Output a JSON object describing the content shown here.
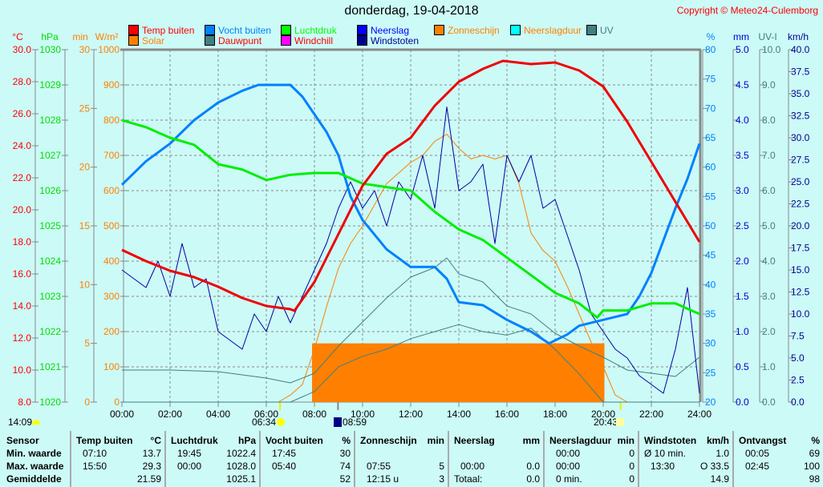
{
  "title": "donderdag, 19-04-2018",
  "copyright": "Copyright © Meteo24-Culemborg",
  "legend": [
    {
      "label": "Temp buiten",
      "color": "#ff0000"
    },
    {
      "label": "Solar",
      "color": "#ff8000"
    },
    {
      "label": "Vocht buiten",
      "color": "#0080ff"
    },
    {
      "label": "Dauwpunt",
      "color": "#408080",
      "text_color": "#ff0000"
    },
    {
      "label": "Luchtdruk",
      "color": "#00ff00"
    },
    {
      "label": "Windchill",
      "color": "#ff00ff",
      "text_color": "#ff0000"
    },
    {
      "label": "Neerslag",
      "color": "#0000ff"
    },
    {
      "label": "Windstoten",
      "color": "#000090"
    },
    {
      "label": "Zonneschijn",
      "color": "#ff8000"
    },
    {
      "label": "Neerslagduur",
      "color": "#00ffff",
      "text_color": "#ff8000"
    },
    {
      "label": "UV",
      "color": "#408080"
    }
  ],
  "annotations": {
    "daylength": "14:09",
    "sunrise": "06:34",
    "moonrise": "08:59",
    "sunset": "20:43"
  },
  "chart_data": {
    "type": "line",
    "title": "donderdag, 19-04-2018",
    "x_ticks": [
      "00:00",
      "02:00",
      "04:00",
      "06:00",
      "08:00",
      "10:00",
      "12:00",
      "14:00",
      "16:00",
      "18:00",
      "20:00",
      "22:00",
      "24:00"
    ],
    "xlim": [
      0,
      24
    ],
    "axes": [
      {
        "unit": "°C",
        "color": "#ff0000",
        "min": 8,
        "max": 30,
        "step": 2,
        "dec": 1,
        "side": "left"
      },
      {
        "unit": "hPa",
        "color": "#00dd00",
        "min": 1020,
        "max": 1030,
        "step": 1,
        "dec": 0,
        "side": "left"
      },
      {
        "unit": "min",
        "color": "#ff8000",
        "min": 0,
        "max": 30,
        "step": 5,
        "dec": 0,
        "side": "left"
      },
      {
        "unit": "W/m²",
        "color": "#ff8000",
        "min": 0,
        "max": 1000,
        "step": 100,
        "dec": 0,
        "side": "left"
      },
      {
        "unit": "%",
        "color": "#0080ff",
        "min": 20,
        "max": 80,
        "step": 5,
        "dec": 0,
        "side": "right"
      },
      {
        "unit": "mm",
        "color": "#0000cc",
        "min": 0,
        "max": 5,
        "step": 0.5,
        "dec": 1,
        "side": "right"
      },
      {
        "unit": "UV-I",
        "color": "#408080",
        "min": 0,
        "max": 10,
        "step": 1,
        "dec": 1,
        "side": "right"
      },
      {
        "unit": "km/h",
        "color": "#000090",
        "min": 0,
        "max": 40,
        "step": 2.5,
        "dec": 1,
        "side": "right"
      }
    ],
    "series": [
      {
        "name": "Zonneschijn",
        "axis": 2,
        "type": "bar",
        "color": "#ff8000",
        "x_range": [
          7.9,
          20.05
        ],
        "value": 5
      },
      {
        "name": "Solar",
        "axis": 3,
        "color": "#ff8000",
        "width": 1,
        "x": [
          0,
          6.5,
          7,
          7.5,
          8,
          8.5,
          9,
          9.5,
          10,
          10.5,
          11,
          11.5,
          12,
          12.5,
          13,
          13.5,
          14,
          14.5,
          15,
          15.5,
          16,
          16.5,
          17,
          17.5,
          18,
          18.5,
          19,
          19.5,
          20,
          20.5,
          21,
          24
        ],
        "y": [
          0,
          0,
          20,
          50,
          150,
          270,
          380,
          450,
          500,
          560,
          620,
          650,
          680,
          700,
          740,
          760,
          720,
          690,
          700,
          690,
          700,
          620,
          480,
          430,
          400,
          330,
          250,
          170,
          100,
          20,
          0,
          0
        ]
      },
      {
        "name": "Dauwpunt",
        "axis": 0,
        "color": "#408080",
        "width": 1,
        "x": [
          0,
          2,
          4,
          6,
          7,
          8,
          9,
          10,
          11,
          12,
          13,
          13.5,
          14,
          15,
          16,
          17,
          18,
          19,
          20,
          21,
          22,
          23,
          24
        ],
        "y": [
          10,
          10,
          9.9,
          9.5,
          9.2,
          9.8,
          11.5,
          13,
          14.5,
          15.8,
          16.4,
          17,
          16,
          15.5,
          14,
          13.5,
          12.3,
          11.5,
          10.8,
          10,
          9.8,
          9.6,
          10.8
        ]
      },
      {
        "name": "UV",
        "axis": 6,
        "color": "#408080",
        "width": 1,
        "x": [
          0,
          7,
          8,
          9,
          10,
          11,
          12,
          13,
          14,
          15,
          16,
          17,
          18,
          19,
          20,
          24
        ],
        "y": [
          0,
          0,
          0.3,
          1.0,
          1.3,
          1.5,
          1.8,
          2.0,
          2.2,
          2.0,
          1.9,
          2.1,
          1.5,
          0.8,
          0,
          0
        ]
      },
      {
        "name": "Windstoten",
        "axis": 7,
        "color": "#0000a0",
        "width": 1,
        "x": [
          0,
          0.5,
          1,
          1.5,
          2,
          2.5,
          3,
          3.5,
          4,
          4.5,
          5,
          5.5,
          6,
          6.5,
          7,
          7.5,
          8,
          8.5,
          9,
          9.5,
          10,
          10.5,
          11,
          11.5,
          12,
          12.5,
          13,
          13.5,
          14,
          14.5,
          15,
          15.5,
          16,
          16.5,
          17,
          17.5,
          18,
          18.5,
          19,
          19.5,
          20,
          20.5,
          21,
          21.5,
          22,
          22.5,
          23,
          23.5,
          24
        ],
        "y": [
          15,
          14,
          13,
          16,
          12,
          18,
          13,
          14,
          8,
          7,
          6,
          10,
          8,
          12,
          9,
          12,
          15,
          18,
          22,
          25,
          22,
          24,
          20,
          25,
          23,
          28,
          22,
          33.5,
          24,
          25,
          27,
          18,
          28,
          25,
          28,
          22,
          23,
          19,
          15,
          10,
          8,
          6,
          5,
          3,
          2,
          1,
          6,
          13,
          1
        ]
      },
      {
        "name": "Vocht buiten",
        "axis": 4,
        "color": "#0080ff",
        "width": 3,
        "x": [
          0,
          1,
          2,
          3,
          4,
          5,
          5.67,
          7,
          7.5,
          8.5,
          9,
          9.5,
          10,
          11,
          12,
          13,
          13.5,
          14,
          15,
          16,
          17,
          17.75,
          18.5,
          19,
          20,
          21,
          21.5,
          22,
          23,
          23.5,
          24
        ],
        "y": [
          57,
          61,
          64,
          68,
          71,
          73,
          74,
          74,
          72,
          66,
          62,
          55,
          51,
          46,
          43,
          43,
          41,
          37,
          36.5,
          34,
          32,
          30,
          31.5,
          33,
          34,
          35,
          38,
          42,
          53,
          58,
          64
        ]
      },
      {
        "name": "Luchtdruk",
        "axis": 1,
        "color": "#00ee00",
        "width": 3,
        "x": [
          0,
          1,
          2,
          3,
          4,
          5,
          6,
          7,
          8,
          9,
          10,
          11,
          12,
          13,
          14,
          15,
          16,
          17,
          18,
          19,
          19.75,
          20,
          21,
          22,
          23,
          24
        ],
        "y": [
          1028,
          1027.8,
          1027.5,
          1027.3,
          1026.75,
          1026.6,
          1026.3,
          1026.45,
          1026.5,
          1026.5,
          1026.2,
          1026.1,
          1026,
          1025.4,
          1024.9,
          1024.6,
          1024.1,
          1023.6,
          1023.1,
          1022.8,
          1022.4,
          1022.6,
          1022.6,
          1022.8,
          1022.8,
          1022.5
        ]
      },
      {
        "name": "Temp buiten",
        "axis": 0,
        "color": "#ee0000",
        "width": 3,
        "x": [
          0,
          1,
          2,
          3,
          4,
          5,
          6,
          7,
          7.17,
          8,
          9,
          10,
          11,
          12,
          13,
          14,
          15,
          15.83,
          17,
          18,
          19,
          20,
          21,
          22,
          23,
          24
        ],
        "y": [
          17.5,
          16.8,
          16.2,
          15.8,
          15.2,
          14.5,
          14,
          13.8,
          13.7,
          15.5,
          18.5,
          21.5,
          23.5,
          24.5,
          26.5,
          28,
          28.8,
          29.3,
          29.1,
          29.2,
          28.7,
          27.7,
          25.5,
          23,
          20.5,
          18
        ]
      }
    ]
  },
  "table": {
    "sensor_header": "Sensor",
    "row_labels": [
      "Min. waarde",
      "Max. waarde",
      "Gemiddelde"
    ],
    "groups": [
      {
        "title": "Temp buiten",
        "unit": "°C",
        "rows": [
          [
            "07:10",
            "13.7"
          ],
          [
            "15:50",
            "29.3"
          ],
          [
            "",
            "21.59"
          ]
        ]
      },
      {
        "title": "Luchtdruk",
        "unit": "hPa",
        "rows": [
          [
            "19:45",
            "1022.4"
          ],
          [
            "00:00",
            "1028.0"
          ],
          [
            "",
            "1025.1"
          ]
        ]
      },
      {
        "title": "Vocht buiten",
        "unit": "%",
        "rows": [
          [
            "17:45",
            "30"
          ],
          [
            "05:40",
            "74"
          ],
          [
            "",
            "52"
          ]
        ]
      },
      {
        "title": "Zonneschijn",
        "unit": "min",
        "rows": [
          [
            "",
            ""
          ],
          [
            "07:55",
            "5"
          ],
          [
            "12:15 u",
            "3"
          ]
        ]
      },
      {
        "title": "Neerslag",
        "unit": "mm",
        "rows": [
          [
            "",
            ""
          ],
          [
            "00:00",
            "0.0"
          ],
          [
            "Totaal:",
            "0.0"
          ]
        ]
      },
      {
        "title": "Neerslagduur",
        "unit": "min",
        "rows": [
          [
            "00:00",
            "0"
          ],
          [
            "00:00",
            "0"
          ],
          [
            "0 min.",
            "0"
          ]
        ]
      },
      {
        "title": "Windstoten",
        "unit": "km/h",
        "rows": [
          [
            "Ø 10 min.",
            "1.0"
          ],
          [
            "13:30",
            "O 33.5"
          ],
          [
            "",
            "14.9"
          ]
        ]
      },
      {
        "title": "Ontvangst",
        "unit": "%",
        "rows": [
          [
            "00:05",
            "69"
          ],
          [
            "02:45",
            "100"
          ],
          [
            "",
            "98"
          ]
        ]
      }
    ]
  }
}
